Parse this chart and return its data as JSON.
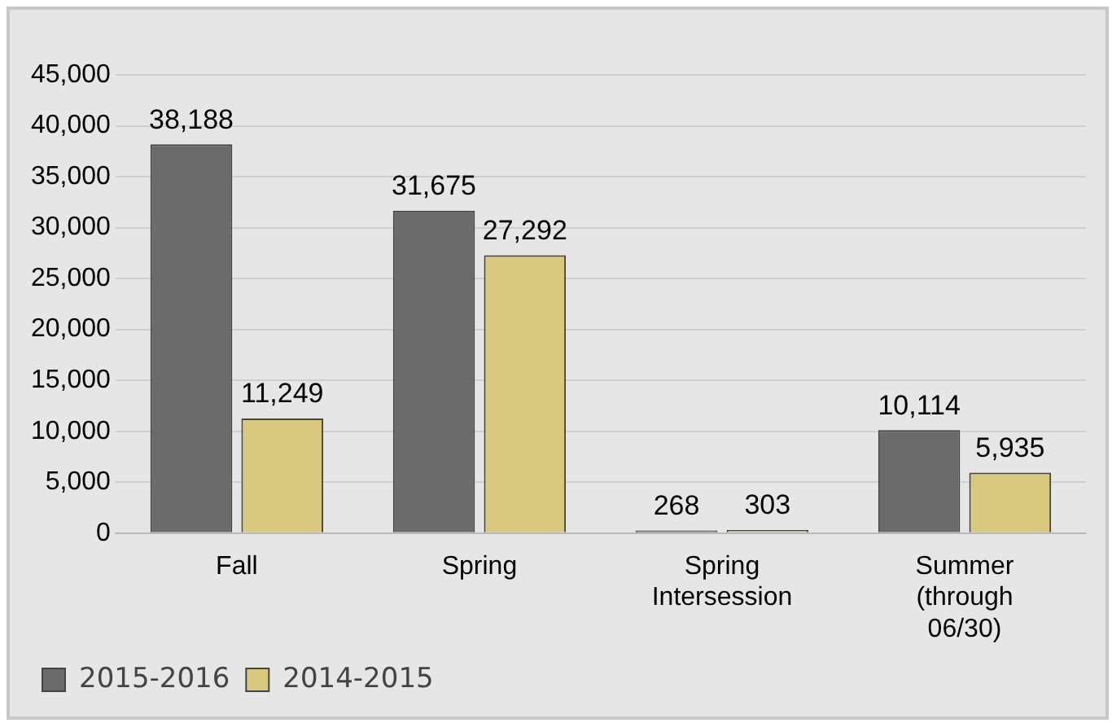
{
  "chart_data": {
    "type": "bar",
    "categories": [
      "Fall",
      "Spring",
      "Spring Intersession",
      "Summer (through 06/30)"
    ],
    "series": [
      {
        "name": "2015-2016",
        "color": "#6b6b6b",
        "values": [
          38188,
          31675,
          268,
          10114
        ],
        "value_labels": [
          "38,188",
          "31,675",
          "268",
          "10,114"
        ]
      },
      {
        "name": "2014-2015",
        "color": "#d8c97e",
        "values": [
          11249,
          27292,
          303,
          5935
        ],
        "value_labels": [
          "11,249",
          "27,292",
          "303",
          "5,935"
        ]
      }
    ],
    "ylim": [
      0,
      45000
    ],
    "yticks": [
      {
        "value": 0,
        "label": "0"
      },
      {
        "value": 5000,
        "label": "5,000"
      },
      {
        "value": 10000,
        "label": "10,000"
      },
      {
        "value": 15000,
        "label": "15,000"
      },
      {
        "value": 20000,
        "label": "20,000"
      },
      {
        "value": 25000,
        "label": "25,000"
      },
      {
        "value": 30000,
        "label": "30,000"
      },
      {
        "value": 35000,
        "label": "35,000"
      },
      {
        "value": 40000,
        "label": "40,000"
      },
      {
        "value": 45000,
        "label": "45,000"
      }
    ],
    "grid": "y",
    "legend": "bottom left"
  }
}
